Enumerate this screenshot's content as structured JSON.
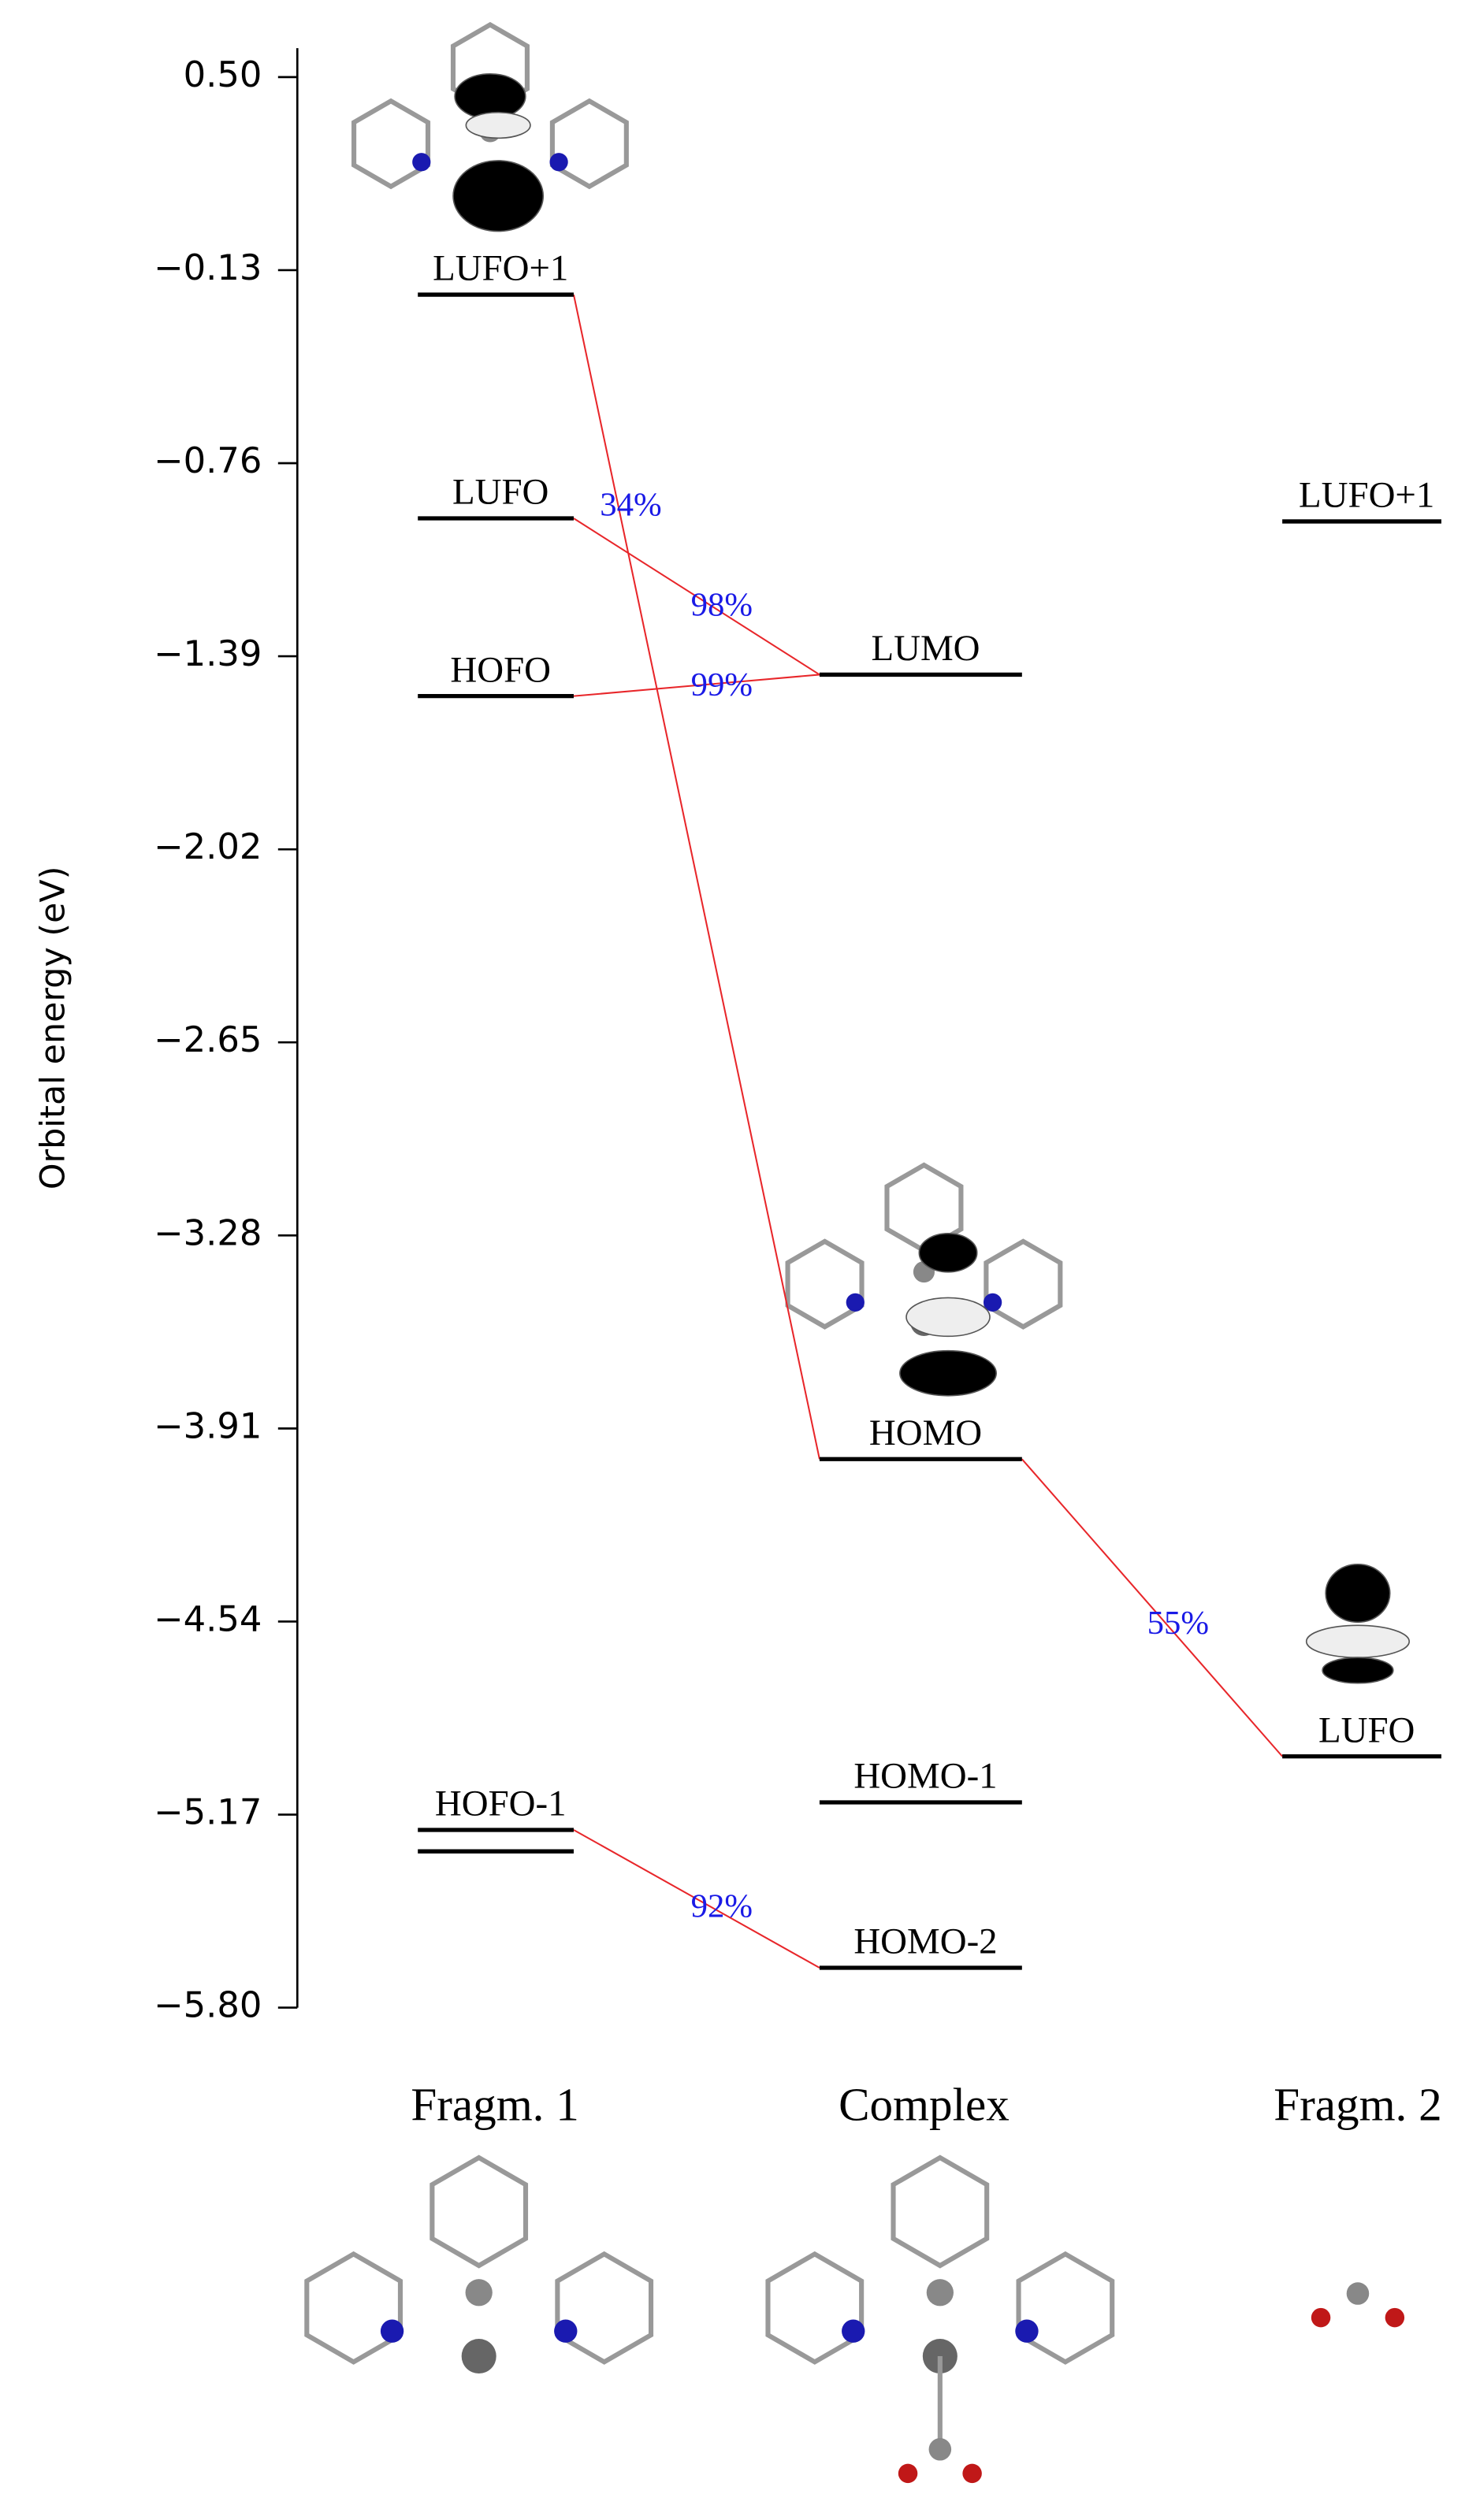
{
  "chart_data": {
    "type": "orbital_levels",
    "y_label": "Orbital energy (eV)",
    "ylim": [
      -5.8,
      0.5
    ],
    "yticks": [
      {
        "value": 0.5,
        "label": "0.50"
      },
      {
        "value": -0.13,
        "label": "−0.13"
      },
      {
        "value": -0.76,
        "label": "−0.76"
      },
      {
        "value": -1.39,
        "label": "−1.39"
      },
      {
        "value": -2.02,
        "label": "−2.02"
      },
      {
        "value": -2.65,
        "label": "−2.65"
      },
      {
        "value": -3.28,
        "label": "−3.28"
      },
      {
        "value": -3.91,
        "label": "−3.91"
      },
      {
        "value": -4.54,
        "label": "−4.54"
      },
      {
        "value": -5.17,
        "label": "−5.17"
      },
      {
        "value": -5.8,
        "label": "−5.80"
      }
    ],
    "series": [
      {
        "name": "Fragm. 1",
        "color": "#000000",
        "labels": [
          "LUFO+1",
          "LUFO",
          "HOFO",
          "HOFO-1",
          null
        ],
        "values": [
          -0.21,
          -0.94,
          -1.52,
          -5.22,
          -5.29
        ]
      },
      {
        "name": "Complex",
        "color": "#000000",
        "labels": [
          "LUMO",
          "HOMO",
          "HOMO-1",
          "HOMO-2"
        ],
        "values": [
          -1.45,
          -4.01,
          -5.13,
          -5.67
        ]
      },
      {
        "name": "Fragm. 2",
        "color": "#000000",
        "labels": [
          "LUFO+1",
          "LUFO"
        ],
        "values": [
          -0.95,
          -4.98
        ]
      }
    ],
    "link_color": "#e8262a",
    "link_label_color": "#1a1ae6",
    "links": [
      {
        "from": [
          0,
          0
        ],
        "to": [
          1,
          1
        ],
        "value": 34,
        "value_label": "34%"
      },
      {
        "from": [
          0,
          1
        ],
        "to": [
          1,
          0
        ],
        "value": 98,
        "value_label": "98%"
      },
      {
        "from": [
          0,
          2
        ],
        "to": [
          1,
          0
        ],
        "value": 99,
        "value_label": "99%"
      },
      {
        "from": [
          0,
          3
        ],
        "to": [
          1,
          3
        ],
        "value": 92,
        "value_label": "92%"
      },
      {
        "from": [
          1,
          1
        ],
        "to": [
          2,
          1
        ],
        "value": 55,
        "value_label": "55%"
      }
    ]
  }
}
